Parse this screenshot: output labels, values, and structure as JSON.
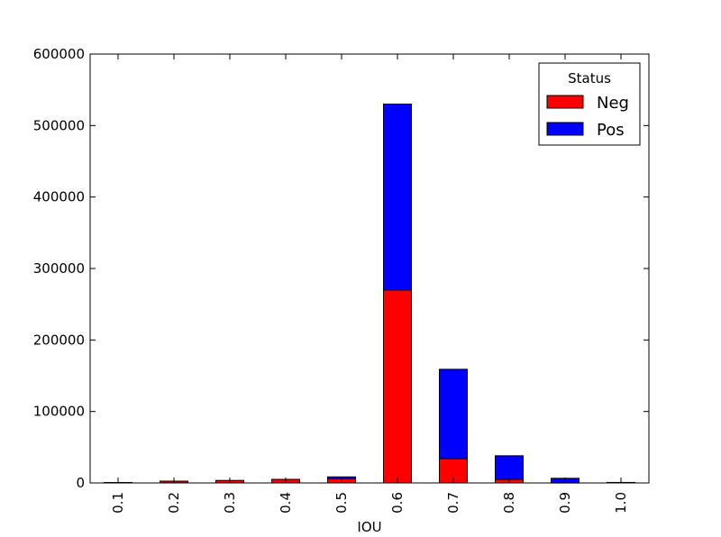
{
  "chart_data": {
    "type": "bar",
    "stacked": true,
    "title": "",
    "xlabel": "IOU",
    "ylabel": "",
    "categories": [
      "0.1",
      "0.2",
      "0.3",
      "0.4",
      "0.5",
      "0.6",
      "0.7",
      "0.8",
      "0.9",
      "1.0"
    ],
    "series": [
      {
        "name": "Neg",
        "color": "#ff0000",
        "values": [
          600,
          2500,
          3500,
          5000,
          6000,
          270000,
          34000,
          5000,
          500,
          0
        ]
      },
      {
        "name": "Pos",
        "color": "#0000ff",
        "values": [
          0,
          0,
          0,
          0,
          2500,
          260000,
          125000,
          33000,
          6000,
          700
        ]
      }
    ],
    "ylim": [
      0,
      600000
    ],
    "yticks": [
      0,
      100000,
      200000,
      300000,
      400000,
      500000,
      600000
    ],
    "ytick_labels": [
      "0",
      "100000",
      "200000",
      "300000",
      "400000",
      "500000",
      "600000"
    ],
    "grid": false,
    "legend": {
      "title": "Status",
      "position": "top-right",
      "entries": [
        "Neg",
        "Pos"
      ]
    }
  }
}
